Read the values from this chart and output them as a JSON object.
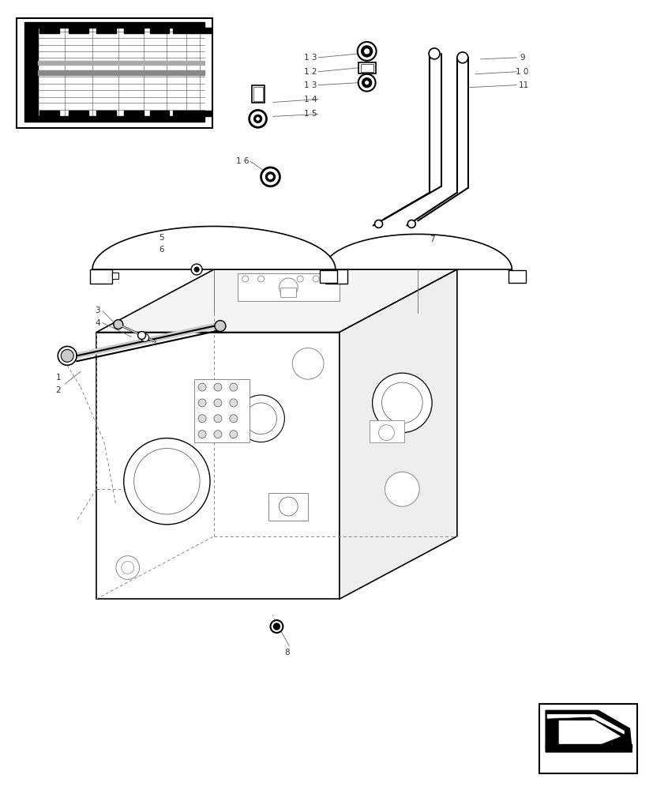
{
  "fig_width": 8.28,
  "fig_height": 10.0,
  "bg": "#ffffff"
}
